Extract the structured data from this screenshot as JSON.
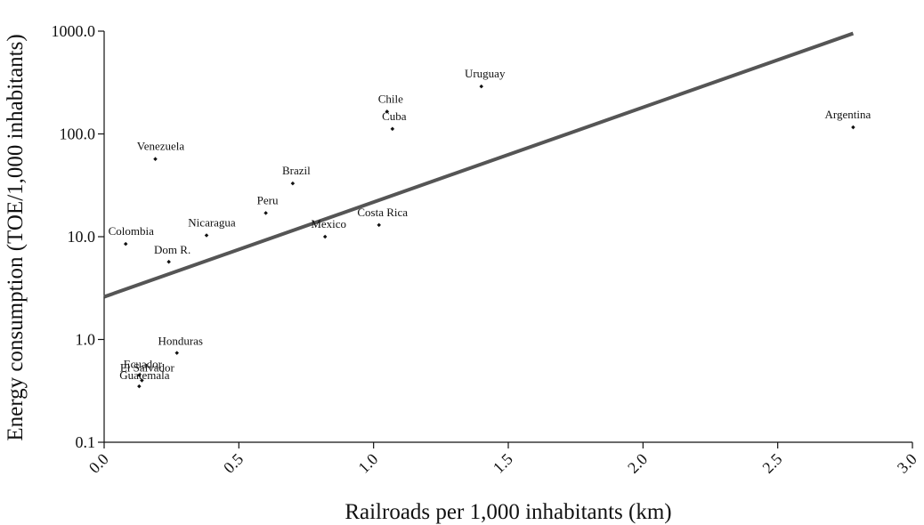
{
  "chart_data": {
    "type": "scatter",
    "title": "",
    "xlabel": "Railroads per 1,000 inhabitants (km)",
    "ylabel": "Energy consumption (TOE/1,000 inhabitants)",
    "xlim": [
      0.0,
      3.0
    ],
    "ylim": [
      0.1,
      1000.0
    ],
    "yscale": "log",
    "grid": false,
    "x_ticks": [
      "0.0",
      "0.5",
      "1.0",
      "1.5",
      "2.0",
      "2.5",
      "3.0"
    ],
    "y_ticks": [
      "0.1",
      "1.0",
      "10.0",
      "100.0",
      "1000.0"
    ],
    "points": [
      {
        "label": "Uruguay",
        "x": 1.4,
        "y": 290
      },
      {
        "label": "Chile",
        "x": 1.05,
        "y": 165
      },
      {
        "label": "Cuba",
        "x": 1.07,
        "y": 112
      },
      {
        "label": "Argentina",
        "x": 2.78,
        "y": 116
      },
      {
        "label": "Venezuela",
        "x": 0.19,
        "y": 57
      },
      {
        "label": "Brazil",
        "x": 0.7,
        "y": 33
      },
      {
        "label": "Peru",
        "x": 0.6,
        "y": 17
      },
      {
        "label": "Costa Rica",
        "x": 1.02,
        "y": 13
      },
      {
        "label": "Nicaragua",
        "x": 0.38,
        "y": 10.3
      },
      {
        "label": "Mexico",
        "x": 0.82,
        "y": 10
      },
      {
        "label": "Colombia",
        "x": 0.08,
        "y": 8.5
      },
      {
        "label": "Dom R.",
        "x": 0.24,
        "y": 5.7
      },
      {
        "label": "Honduras",
        "x": 0.27,
        "y": 0.74
      },
      {
        "label": "Ecuador",
        "x": 0.13,
        "y": 0.45
      },
      {
        "label": "El Salvador",
        "x": 0.14,
        "y": 0.4
      },
      {
        "label": "Guatemala",
        "x": 0.13,
        "y": 0.35
      }
    ],
    "trendline": {
      "x": [
        0.0,
        2.78
      ],
      "y": [
        2.6,
        950
      ]
    }
  }
}
